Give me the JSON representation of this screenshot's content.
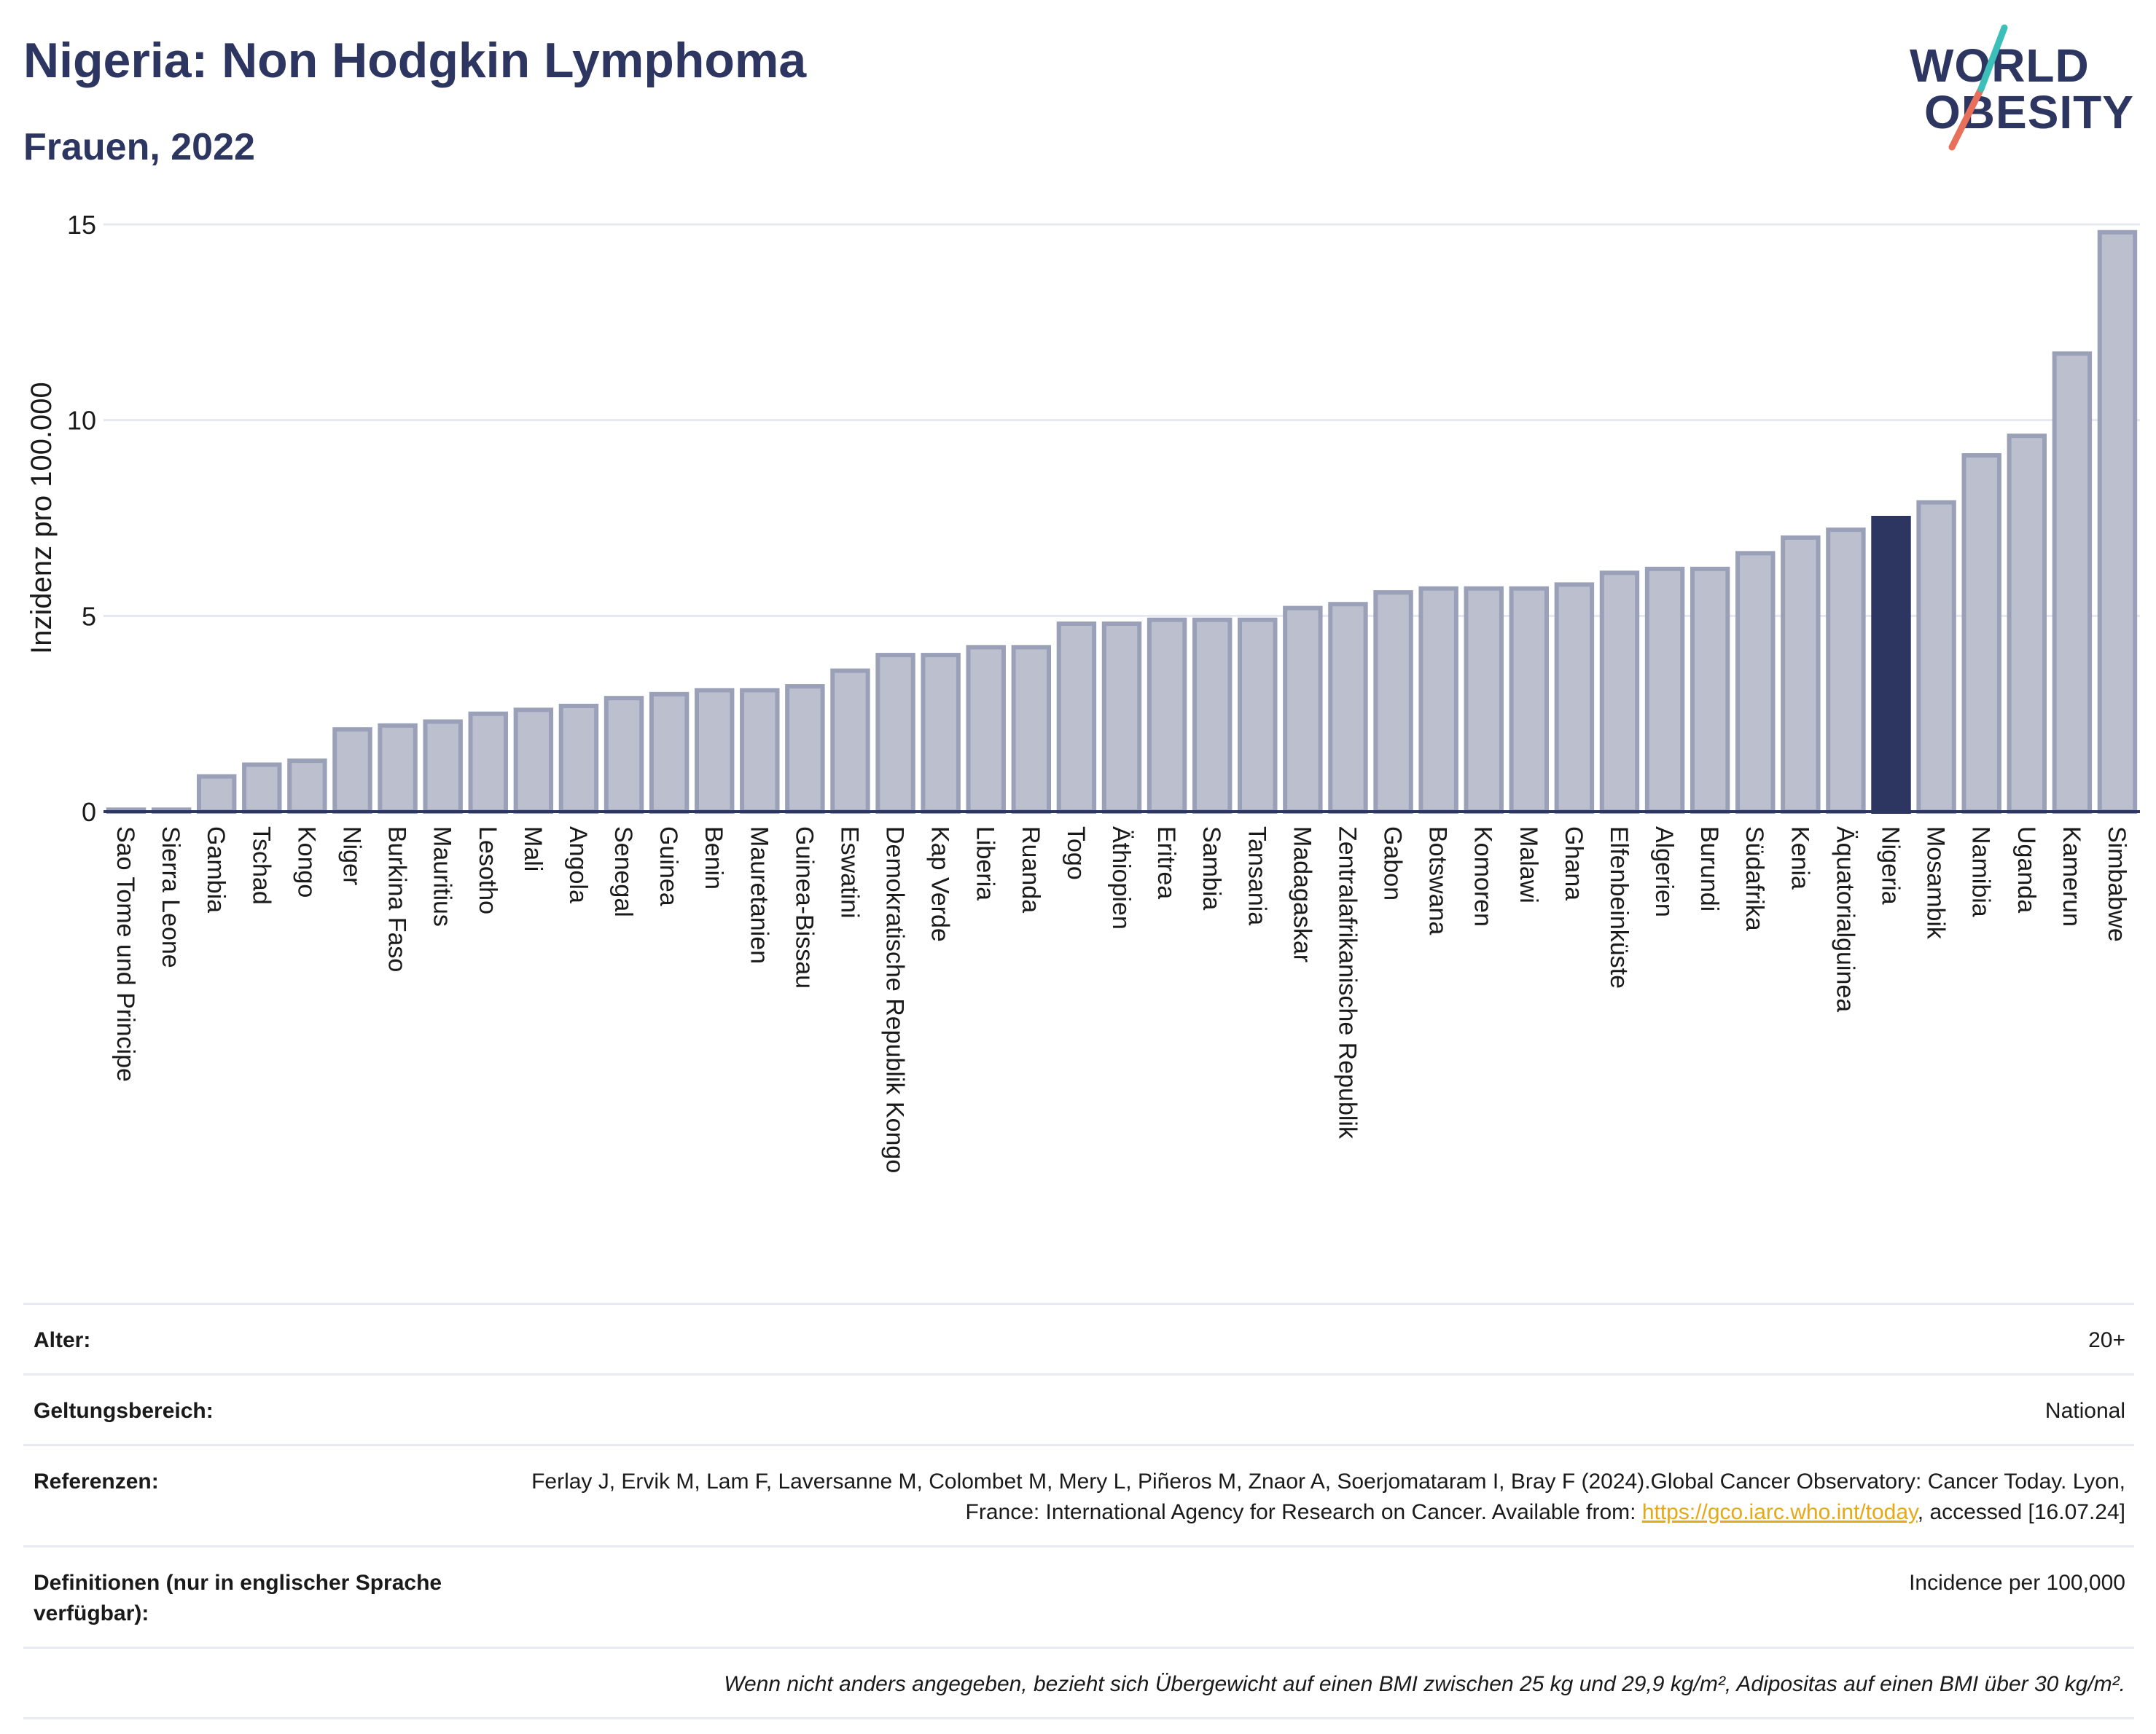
{
  "header": {
    "title": "Nigeria: Non Hodgkin Lymphoma",
    "subtitle": "Frauen, 2022",
    "logo_line1": "WORLD",
    "logo_line2": "OBESITY"
  },
  "chart_data": {
    "type": "bar",
    "title": "Nigeria: Non Hodgkin Lymphoma",
    "subtitle": "Frauen, 2022",
    "xlabel": "",
    "ylabel": "Inzidenz pro 100.000",
    "ylim": [
      0,
      15
    ],
    "yticks": [
      0,
      5,
      10,
      15
    ],
    "grid": true,
    "highlight": "Nigeria",
    "categories": [
      "Sao Tome und Principe",
      "Sierra Leone",
      "Gambia",
      "Tschad",
      "Kongo",
      "Niger",
      "Burkina Faso",
      "Mauritius",
      "Lesotho",
      "Mali",
      "Angola",
      "Senegal",
      "Guinea",
      "Benin",
      "Mauretanien",
      "Guinea-Bissau",
      "Eswatini",
      "Demokratische Republik Kongo",
      "Kap Verde",
      "Liberia",
      "Ruanda",
      "Togo",
      "Äthiopien",
      "Eritrea",
      "Sambia",
      "Tansania",
      "Madagaskar",
      "Zentralafrikanische Republik",
      "Gabon",
      "Botswana",
      "Komoren",
      "Malawi",
      "Ghana",
      "Elfenbeinküste",
      "Algerien",
      "Burundi",
      "Südafrika",
      "Kenia",
      "Äquatorialguinea",
      "Nigeria",
      "Mosambik",
      "Namibia",
      "Uganda",
      "Kamerun",
      "Simbabwe"
    ],
    "values": [
      0.05,
      0.05,
      0.9,
      1.2,
      1.3,
      2.1,
      2.2,
      2.3,
      2.5,
      2.6,
      2.7,
      2.9,
      3.0,
      3.1,
      3.1,
      3.2,
      3.6,
      4.0,
      4.0,
      4.2,
      4.2,
      4.8,
      4.8,
      4.9,
      4.9,
      4.9,
      5.2,
      5.3,
      5.6,
      5.7,
      5.7,
      5.7,
      5.8,
      6.1,
      6.2,
      6.2,
      6.6,
      7.0,
      7.2,
      7.5,
      7.9,
      9.1,
      9.6,
      11.7,
      14.8
    ],
    "colors": {
      "bar": "#bcc0ce",
      "bar_border": "#9aa0b8",
      "highlight": "#2d3561",
      "grid": "#e6e8ef",
      "axis": "#2d3561"
    }
  },
  "info": {
    "age_label": "Alter:",
    "age_value": "20+",
    "scope_label": "Geltungsbereich:",
    "scope_value": "National",
    "ref_label": "Referenzen:",
    "ref_text_1": "Ferlay J, Ervik M, Lam F, Laversanne M, Colombet M, Mery L, Piñeros M, Znaor A, Soerjomataram I, Bray F (2024).Global Cancer Observatory: Cancer Today. Lyon, France: International Agency for Research on Cancer. Available from: ",
    "ref_link": "https://gco.iarc.who.int/today",
    "ref_text_2": ", accessed [16.07.24]",
    "def_label": "Definitionen (nur in englischer Sprache verfügbar):",
    "def_value": "Incidence per 100,000",
    "note": "Wenn nicht anders angegeben, bezieht sich Übergewicht auf einen BMI zwischen 25 kg und 29,9 kg/m², Adipositas auf einen BMI über 30 kg/m²."
  }
}
